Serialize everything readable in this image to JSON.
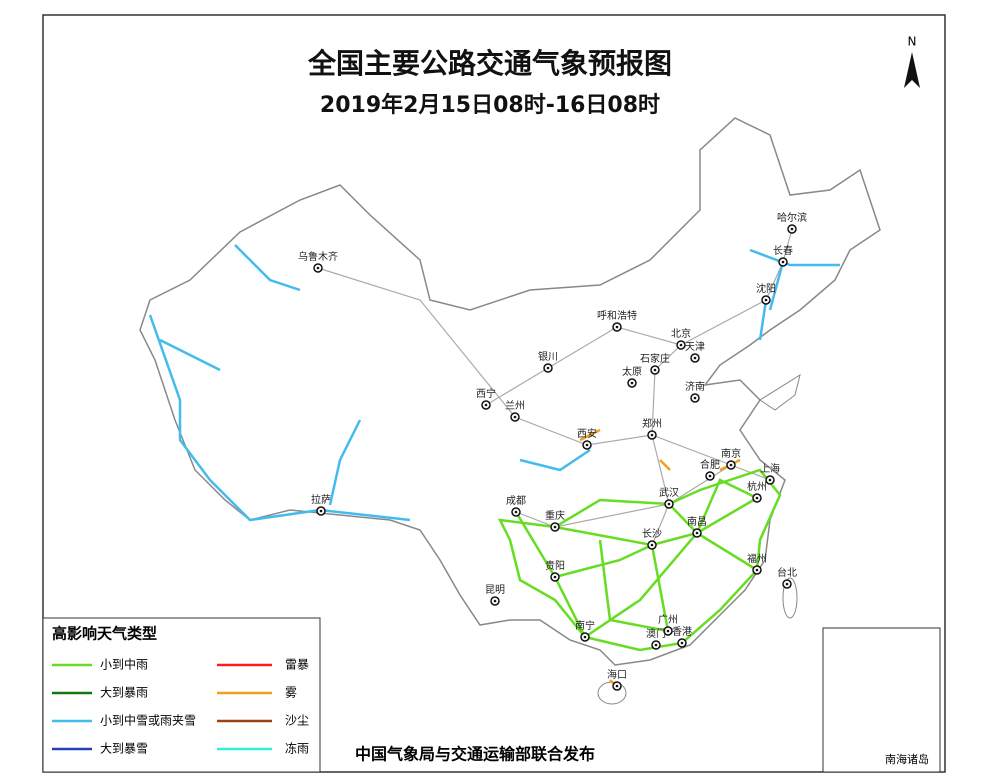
{
  "header": {
    "title": "全国主要公路交通气象预报图",
    "subtitle": "2019年2月15日08时-16日08时"
  },
  "north": "N",
  "legend": {
    "title": "高影响天气类型",
    "items": [
      {
        "label": "小到中雨",
        "color": "#66dd22"
      },
      {
        "label": "大到暴雨",
        "color": "#117711"
      },
      {
        "label": "小到中雪或雨夹雪",
        "color": "#44bbee"
      },
      {
        "label": "大到暴雪",
        "color": "#2244bb"
      },
      {
        "label": "雷暴",
        "color": "#ee2222"
      },
      {
        "label": "雾",
        "color": "#f0a020"
      },
      {
        "label": "沙尘",
        "color": "#994411"
      },
      {
        "label": "冻雨",
        "color": "#33eedd"
      }
    ]
  },
  "cities": [
    "乌鲁木齐",
    "哈尔滨",
    "长春",
    "沈阳",
    "呼和浩特",
    "北京",
    "天津",
    "银川",
    "太原",
    "石家庄",
    "济南",
    "西宁",
    "兰州",
    "西安",
    "郑州",
    "合肥",
    "南京",
    "上海",
    "杭州",
    "成都",
    "武汉",
    "重庆",
    "南昌",
    "长沙",
    "福州",
    "台北",
    "贵阳",
    "昆明",
    "南宁",
    "广州",
    "澳门",
    "香港",
    "海口",
    "拉萨"
  ],
  "footer": "中国气象局与交通运输部联合发布",
  "inset": "南海诸岛"
}
